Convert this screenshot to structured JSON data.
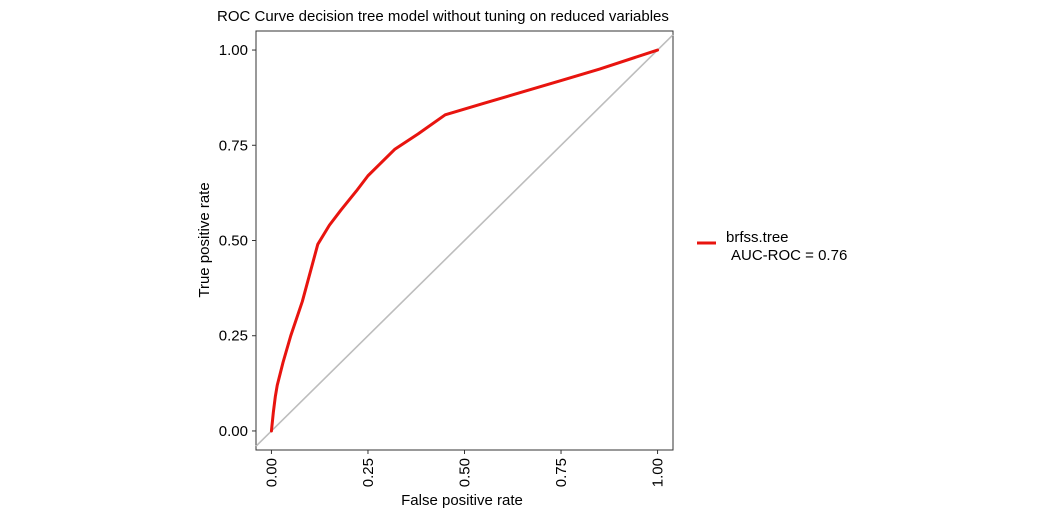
{
  "chart_data": {
    "type": "line",
    "title": "ROC Curve decision tree model without tuning on reduced variables",
    "xlabel": "False positive rate",
    "ylabel": "True positive rate",
    "xlim": [
      -0.04,
      1.04
    ],
    "ylim": [
      -0.05,
      1.05
    ],
    "x_ticks": [
      0,
      0.25,
      0.5,
      0.75,
      1
    ],
    "x_tick_labels": [
      "0.00",
      "0.25",
      "0.50",
      "0.75",
      "1.00"
    ],
    "y_ticks": [
      0,
      0.25,
      0.5,
      0.75,
      1
    ],
    "y_tick_labels": [
      "0.00",
      "0.25",
      "0.50",
      "0.75",
      "1.00"
    ],
    "grid": false,
    "legend_position": "right",
    "diagonal_reference": {
      "x": [
        0,
        1
      ],
      "y": [
        0,
        1
      ],
      "color": "#bdbdbd"
    },
    "series": [
      {
        "name": "brfss.tree",
        "label_line2": "AUC-ROC = 0.76",
        "color": "#e8140f",
        "x": [
          0,
          0.005,
          0.01,
          0.015,
          0.03,
          0.05,
          0.08,
          0.12,
          0.15,
          0.18,
          0.22,
          0.25,
          0.28,
          0.32,
          0.38,
          0.45,
          0.55,
          0.65,
          0.75,
          0.85,
          1
        ],
        "y": [
          0,
          0.05,
          0.09,
          0.12,
          0.18,
          0.25,
          0.34,
          0.49,
          0.54,
          0.58,
          0.63,
          0.67,
          0.7,
          0.74,
          0.78,
          0.83,
          0.86,
          0.89,
          0.92,
          0.95,
          1
        ]
      }
    ]
  }
}
